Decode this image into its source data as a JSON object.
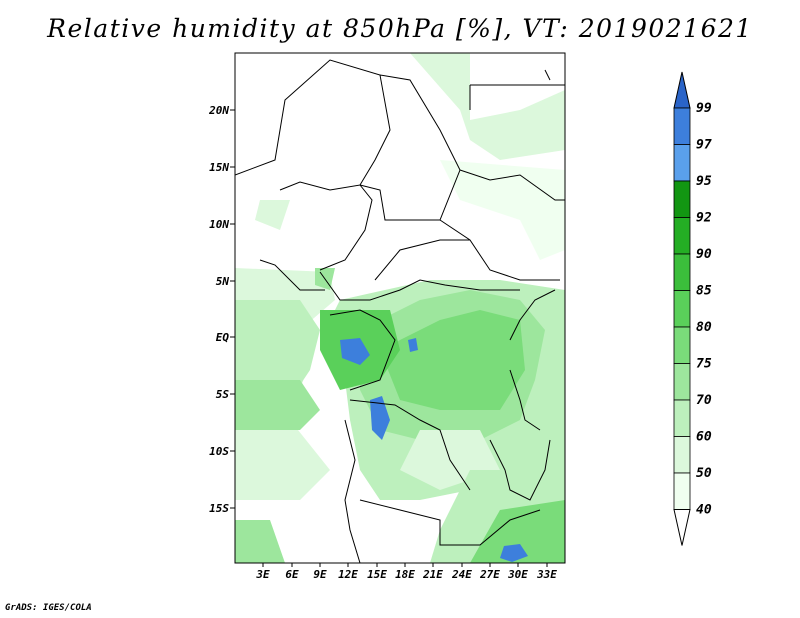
{
  "title": "Relative humidity at 850hPa [%], VT: 2019021621",
  "credit": "GrADS: IGES/COLA",
  "lat_ticks": [
    "20N",
    "15N",
    "10N",
    "5N",
    "EQ",
    "5S",
    "10S",
    "15S"
  ],
  "lon_ticks": [
    "3E",
    "6E",
    "9E",
    "12E",
    "15E",
    "18E",
    "21E",
    "24E",
    "27E",
    "30E",
    "33E"
  ],
  "colorbar": {
    "levels": [
      "99",
      "97",
      "95",
      "92",
      "90",
      "85",
      "80",
      "75",
      "70",
      "60",
      "50",
      "40"
    ],
    "colors": [
      "#2a64c8",
      "#3d7fdc",
      "#5aa0ec",
      "#129612",
      "#24ae24",
      "#3bbe3b",
      "#5ad05a",
      "#7adc7a",
      "#9de69d",
      "#bdf0bd",
      "#dcf8dc",
      "#f0fff0"
    ]
  }
}
